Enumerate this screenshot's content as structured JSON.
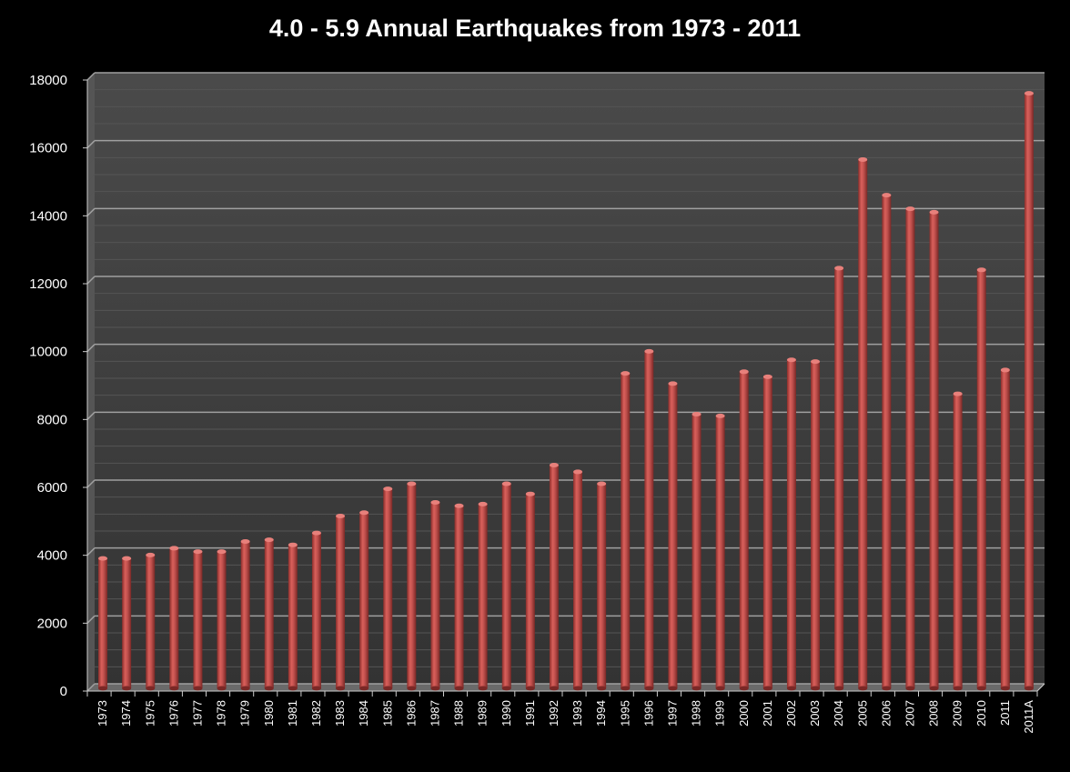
{
  "chart_data": {
    "type": "bar",
    "title": "4.0 - 5.9 Annual Earthquakes from 1973 - 2011",
    "xlabel": "",
    "ylabel": "",
    "ylim": [
      0,
      18000
    ],
    "yticks": [
      0,
      2000,
      4000,
      6000,
      8000,
      10000,
      12000,
      14000,
      16000,
      18000
    ],
    "grid": true,
    "legend": "none",
    "categories": [
      "1973",
      "1974",
      "1975",
      "1976",
      "1977",
      "1978",
      "1979",
      "1980",
      "1981",
      "1982",
      "1983",
      "1984",
      "1985",
      "1986",
      "1987",
      "1988",
      "1989",
      "1990",
      "1991",
      "1992",
      "1993",
      "1994",
      "1995",
      "1996",
      "1997",
      "1998",
      "1999",
      "2000",
      "2001",
      "2002",
      "2003",
      "2004",
      "2005",
      "2006",
      "2007",
      "2008",
      "2009",
      "2010",
      "2011",
      "2011A"
    ],
    "series": [
      {
        "name": "4.0 - 5.9 Earthquakes",
        "values": [
          3800,
          3800,
          3900,
          4100,
          4000,
          4000,
          4300,
          4350,
          4200,
          4550,
          5050,
          5150,
          5850,
          6000,
          5450,
          5350,
          5400,
          6000,
          5700,
          6550,
          6350,
          6000,
          9250,
          9900,
          8950,
          8050,
          8000,
          9300,
          9150,
          9650,
          9600,
          12350,
          15550,
          14500,
          14100,
          14000,
          8650,
          12300,
          9350,
          17500
        ]
      }
    ],
    "colors": {
      "bar": "#c0504d",
      "bar_highlight": "#e07a76",
      "bar_shadow": "#8b2e2b",
      "plot_back": "#3a3a3a",
      "plot_side": "#4a4a4a",
      "grid": "#a0a0a0",
      "minor_grid": "#555555",
      "text": "#ffffff"
    }
  }
}
